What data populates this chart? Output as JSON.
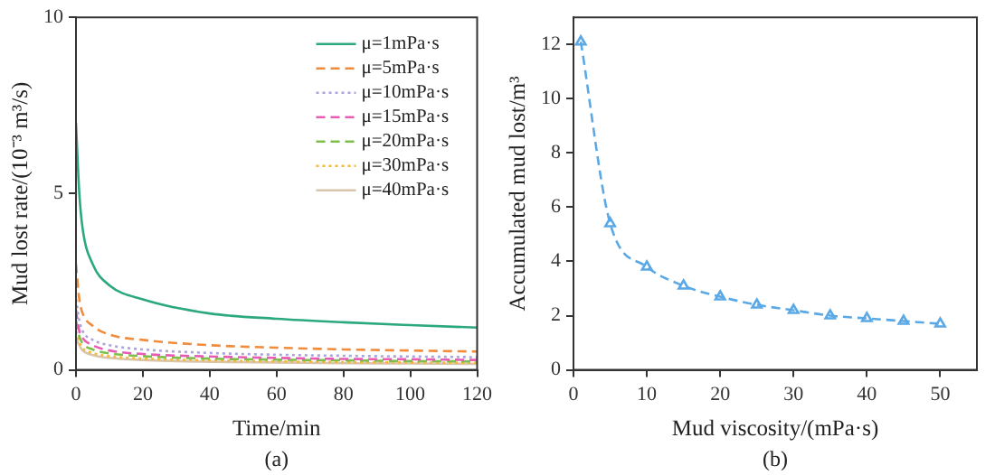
{
  "chart_data": [
    {
      "type": "line",
      "xlabel": "Time/min",
      "ylabel": "Mud lost rate/(10⁻³ m³/s)",
      "annotations": [
        "(a)"
      ],
      "x": [
        0,
        1,
        2,
        5,
        10,
        20,
        40,
        60,
        80,
        100,
        120
      ],
      "xlim": [
        0,
        120
      ],
      "xticks": [
        0,
        20,
        40,
        60,
        80,
        100,
        120
      ],
      "ylim": [
        0,
        10
      ],
      "yticks": [
        0,
        5,
        10
      ],
      "grid": false,
      "legend": "top right",
      "marker": "none",
      "series": [
        {
          "name": "μ=1mPa·s",
          "color": "#2ca87f",
          "line_style": "solid",
          "values": [
            7.0,
            5.0,
            4.0,
            3.0,
            2.4,
            2.0,
            1.6,
            1.45,
            1.35,
            1.27,
            1.2
          ]
        },
        {
          "name": "μ=5mPa·s",
          "color": "#f08c3c",
          "line_style": "dashed",
          "values": [
            3.0,
            2.0,
            1.6,
            1.25,
            1.0,
            0.85,
            0.7,
            0.63,
            0.58,
            0.55,
            0.52
          ]
        },
        {
          "name": "μ=10mPa·s",
          "color": "#a9a4dc",
          "line_style": "dotted",
          "values": [
            2.0,
            1.4,
            1.1,
            0.85,
            0.7,
            0.58,
            0.48,
            0.43,
            0.4,
            0.38,
            0.36
          ]
        },
        {
          "name": "μ=15mPa·s",
          "color": "#e85cb4",
          "line_style": "dashed",
          "values": [
            1.7,
            1.1,
            0.9,
            0.7,
            0.55,
            0.45,
            0.38,
            0.34,
            0.31,
            0.3,
            0.28
          ]
        },
        {
          "name": "μ=20mPa·s",
          "color": "#7cbf4a",
          "line_style": "dashed",
          "values": [
            1.4,
            0.95,
            0.75,
            0.58,
            0.47,
            0.39,
            0.32,
            0.29,
            0.27,
            0.25,
            0.24
          ]
        },
        {
          "name": "μ=30mPa·s",
          "color": "#f4b83a",
          "line_style": "dotted",
          "values": [
            1.1,
            0.8,
            0.62,
            0.48,
            0.39,
            0.32,
            0.27,
            0.24,
            0.22,
            0.21,
            0.2
          ]
        },
        {
          "name": "μ=40mPa·s",
          "color": "#d9c4ac",
          "line_style": "solid",
          "values": [
            0.9,
            0.7,
            0.55,
            0.42,
            0.34,
            0.28,
            0.23,
            0.21,
            0.19,
            0.18,
            0.17
          ]
        }
      ]
    },
    {
      "type": "line",
      "xlabel": "Mud viscosity/(mPa·s)",
      "ylabel": "Accumulated mud lost/m³",
      "annotations": [
        "(b)"
      ],
      "x": [
        1,
        5,
        10,
        15,
        20,
        25,
        30,
        35,
        40,
        45,
        50
      ],
      "xlim": [
        0,
        55
      ],
      "xticks": [
        0,
        10,
        20,
        30,
        40,
        50
      ],
      "ylim": [
        0,
        13
      ],
      "yticks": [
        0,
        2,
        4,
        6,
        8,
        10,
        12
      ],
      "grid": false,
      "legend": false,
      "marker": "triangle",
      "line_style": "dashed",
      "series": [
        {
          "color": "#5aa9e6",
          "values": [
            12.1,
            5.4,
            3.8,
            3.1,
            2.7,
            2.4,
            2.2,
            2.0,
            1.9,
            1.8,
            1.7
          ]
        }
      ]
    }
  ]
}
